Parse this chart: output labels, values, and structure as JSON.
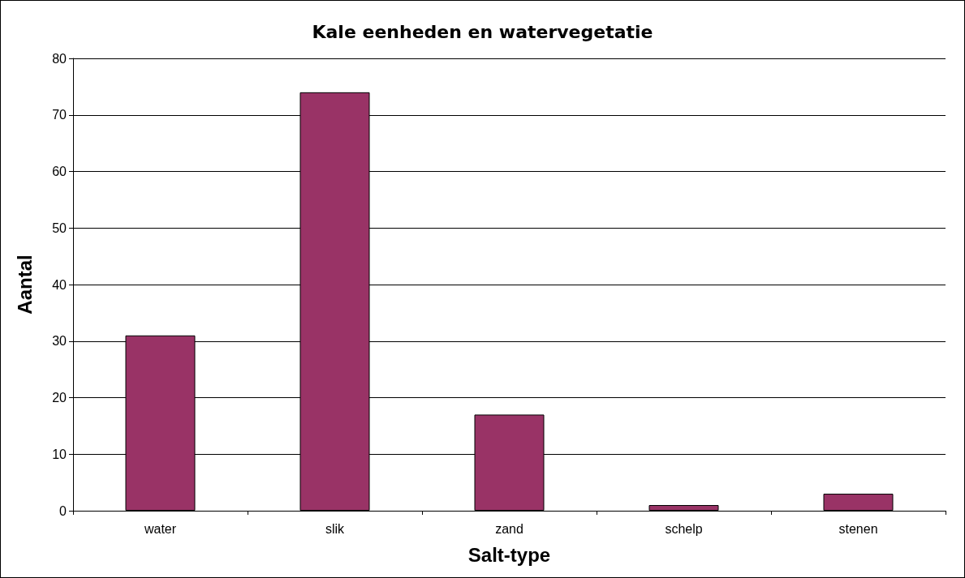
{
  "chart_data": {
    "type": "bar",
    "title": "Kale eenheden en watervegetatie",
    "xlabel": "Salt-type",
    "ylabel": "Aantal",
    "categories": [
      "water",
      "slik",
      "zand",
      "schelp",
      "stenen"
    ],
    "values": [
      31,
      74,
      17,
      1,
      3
    ],
    "color": "#993366",
    "ylim": [
      0,
      80
    ],
    "yticks": [
      0,
      10,
      20,
      30,
      40,
      50,
      60,
      70,
      80
    ],
    "grid": "y"
  }
}
